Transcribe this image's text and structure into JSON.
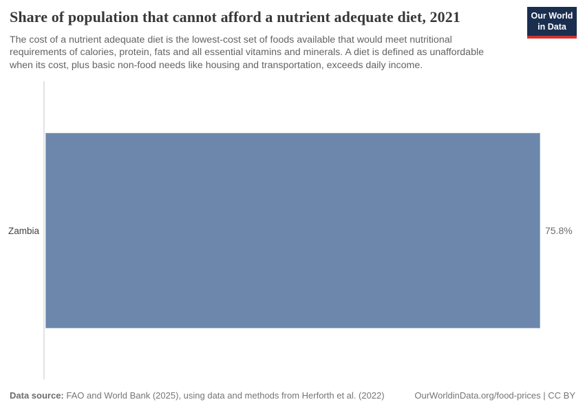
{
  "header": {
    "title": "Share of population that cannot afford a nutrient adequate diet, 2021",
    "subtitle_lines": [
      "The cost of a nutrient adequate diet is the lowest-cost set of foods available that would meet nutritional",
      "requirements of calories, protein, fats and all essential vitamins and minerals. A diet is defined as unaffordable",
      "when its cost, plus basic non-food needs like housing and transportation, exceeds daily income."
    ],
    "logo": {
      "line1": "Our World",
      "line2": "in Data",
      "bg_color": "#1a2e4f",
      "accent_color": "#d0342c"
    }
  },
  "chart_data": {
    "type": "bar",
    "orientation": "horizontal",
    "title": "Share of population that cannot afford a nutrient adequate diet, 2021",
    "categories": [
      "Zambia"
    ],
    "values": [
      75.8
    ],
    "value_labels": [
      "75.8%"
    ],
    "unit": "%",
    "xlim": [
      0,
      75.8
    ],
    "grid": false,
    "legend": "none",
    "bar_color": "#6c87ab",
    "axis_line_color": "#e2e2e2"
  },
  "footer": {
    "source_label": "Data source:",
    "source_text": " FAO and World Bank (2025), using data and methods from Herforth et al. (2022)",
    "credit": "OurWorldinData.org/food-prices | CC BY"
  }
}
